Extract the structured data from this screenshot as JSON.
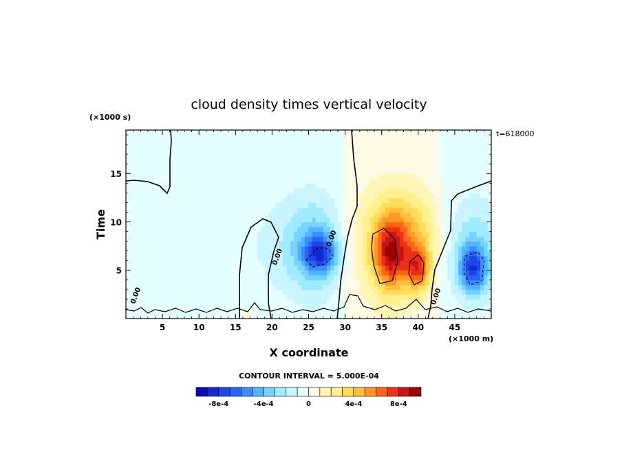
{
  "chart_data": {
    "type": "heatmap",
    "title": "cloud density times vertical velocity",
    "xlabel": "X coordinate",
    "ylabel": "Time",
    "x_unit": "(×1000 m)",
    "y_unit": "(×1000 s)",
    "time_label": "t=618000",
    "xlim": [
      0,
      50
    ],
    "ylim": [
      0,
      19.5
    ],
    "x_ticks": [
      5,
      10,
      15,
      20,
      25,
      30,
      35,
      40,
      45
    ],
    "y_ticks": [
      5,
      10,
      15
    ],
    "contour_interval_text": "CONTOUR INTERVAL = 5.000E-04",
    "contour_labels": [
      {
        "x": 28.4,
        "y": 8.2,
        "text": "0.00"
      },
      {
        "x": 21.0,
        "y": 6.3,
        "text": "0.00"
      },
      {
        "x": 1.6,
        "y": 2.3,
        "text": "0.00"
      },
      {
        "x": 42.7,
        "y": 2.2,
        "text": "0.00"
      }
    ],
    "features": [
      {
        "x": 26.5,
        "y": 6.8,
        "sx": 1.6,
        "sy": 1.4,
        "amp": -0.00055
      },
      {
        "x": 26.0,
        "y": 7.5,
        "sx": 3.2,
        "sy": 4.0,
        "amp": -0.0003
      },
      {
        "x": 21.0,
        "y": 7.5,
        "sx": 6.0,
        "sy": 4.0,
        "amp": -0.0001
      },
      {
        "x": 36.2,
        "y": 6.8,
        "sx": 1.5,
        "sy": 2.6,
        "amp": 0.00055
      },
      {
        "x": 36.0,
        "y": 7.8,
        "sx": 4.2,
        "sy": 4.5,
        "amp": 0.00035
      },
      {
        "x": 40.0,
        "y": 5.2,
        "sx": 1.2,
        "sy": 1.6,
        "amp": 0.0005
      },
      {
        "x": 39.5,
        "y": 8.5,
        "sx": 2.5,
        "sy": 3.0,
        "amp": 0.0002
      },
      {
        "x": 47.5,
        "y": 5.2,
        "sx": 1.3,
        "sy": 1.6,
        "amp": -0.00055
      },
      {
        "x": 47.5,
        "y": 7.0,
        "sx": 3.0,
        "sy": 4.0,
        "amp": -0.0003
      },
      {
        "x": 1.5,
        "y": 6.0,
        "sx": 1.5,
        "sy": 2.0,
        "amp": -8e-05
      }
    ],
    "colorbar": {
      "colors": [
        "#0a0ab4",
        "#1428d2",
        "#1e46e6",
        "#2864f5",
        "#3c8cff",
        "#50b4ff",
        "#78d2ff",
        "#a0ebff",
        "#c8f5ff",
        "#e6ffff",
        "#fffae6",
        "#fff5b4",
        "#fff08c",
        "#ffdc5a",
        "#ffbe3c",
        "#ff9628",
        "#ff6414",
        "#eb3214",
        "#c81414",
        "#a00000"
      ],
      "labels": [
        "-8e-4",
        "-4e-4",
        "0",
        "4e-4",
        "8e-4"
      ],
      "label_values": [
        -0.0008,
        -0.0004,
        0,
        0.0004,
        0.0008
      ],
      "range": [
        -0.001,
        0.001
      ]
    }
  }
}
